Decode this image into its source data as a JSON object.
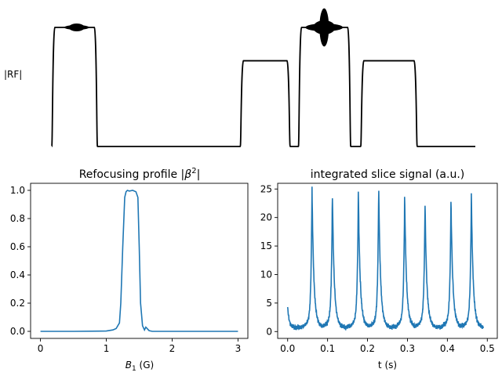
{
  "chart_data": [
    {
      "type": "line",
      "title": "",
      "ylabel": "|RF|",
      "xlabel": "",
      "axes_visible": false,
      "color": "#000000",
      "x": [
        0.0,
        0.08,
        0.12,
        0.5,
        0.8,
        0.84,
        0.95,
        1.0,
        1.42,
        1.46,
        1.9,
        2.27,
        2.31,
        3.45,
        3.5,
        3.8,
        3.92,
        3.96,
        4.08,
        4.12,
        4.5,
        4.7,
        4.75,
        4.9,
        5.24,
        5.28,
        5.9
      ],
      "values": [
        0.0,
        1.0,
        1.0,
        1.0,
        1.0,
        1.0,
        0.0,
        0.0,
        0.0,
        0.0,
        0.0,
        0.0,
        0.0,
        0.0,
        0.0,
        0.0,
        0.0,
        0.0,
        0.0,
        0.0,
        0.0,
        0.0,
        0.0,
        0.0,
        0.0,
        0.0,
        0.0
      ],
      "segments": [
        {
          "x": [
            0.0,
            0.55
          ],
          "level": 1.0
        },
        {
          "x": [
            0.55,
            2.27
          ],
          "level": 0.0
        },
        {
          "x": [
            2.27,
            2.87
          ],
          "level": 0.72
        },
        {
          "x": [
            2.87,
            2.97
          ],
          "level": 0.0
        },
        {
          "x": [
            2.97,
            3.6
          ],
          "level": 1.0
        },
        {
          "x": [
            3.6,
            3.72
          ],
          "level": 0.0
        },
        {
          "x": [
            3.72,
            4.4
          ],
          "level": 0.72
        },
        {
          "x": [
            4.4,
            5.1
          ],
          "level": 0.0
        }
      ],
      "bursts": [
        {
          "center": 0.3,
          "amplitude": 0.03
        },
        {
          "center": 3.28,
          "amplitude": 0.16
        }
      ]
    },
    {
      "type": "line",
      "title": "Refocusing profile |β²|",
      "title_prefix": "Refocusing profile |",
      "title_symbol": "β",
      "title_sup": "2",
      "title_suffix": "|",
      "xlabel_main": "B",
      "xlabel_sub": "1",
      "xlabel_rest": " (G)",
      "ylabel": "",
      "xlim": [
        -0.15,
        3.15
      ],
      "ylim": [
        -0.05,
        1.05
      ],
      "xticks": [
        0,
        1,
        2,
        3
      ],
      "xtick_labels": [
        "0",
        "1",
        "2",
        "3"
      ],
      "yticks": [
        0.0,
        0.2,
        0.4,
        0.6,
        0.8,
        1.0
      ],
      "ytick_labels": [
        "0.0",
        "0.2",
        "0.4",
        "0.6",
        "0.8",
        "1.0"
      ],
      "color": "#1f77b4",
      "x": [
        0.0,
        0.5,
        1.0,
        1.1,
        1.15,
        1.2,
        1.22,
        1.25,
        1.28,
        1.3,
        1.32,
        1.35,
        1.4,
        1.45,
        1.48,
        1.5,
        1.52,
        1.55,
        1.58,
        1.6,
        1.62,
        1.65,
        1.7,
        2.0,
        2.5,
        3.0
      ],
      "values": [
        0.0,
        0.0,
        0.002,
        0.01,
        0.02,
        0.06,
        0.2,
        0.6,
        0.95,
        0.99,
        1.0,
        0.995,
        1.0,
        0.99,
        0.95,
        0.6,
        0.2,
        0.04,
        0.01,
        0.03,
        0.02,
        0.005,
        0.0,
        0.0,
        0.0,
        0.0
      ]
    },
    {
      "type": "line",
      "title": "integrated slice signal (a.u.)",
      "xlabel": "t (s)",
      "ylabel": "",
      "xlim": [
        -0.025,
        0.525
      ],
      "ylim": [
        -1.2,
        26.0
      ],
      "xticks": [
        0.0,
        0.1,
        0.2,
        0.3,
        0.4,
        0.5
      ],
      "xtick_labels": [
        "0.0",
        "0.1",
        "0.2",
        "0.3",
        "0.4",
        "0.5"
      ],
      "yticks": [
        0,
        5,
        10,
        15,
        20,
        25
      ],
      "ytick_labels": [
        "0",
        "5",
        "10",
        "15",
        "20",
        "25"
      ],
      "color": "#1f77b4",
      "start": {
        "x": 0.0,
        "y": 4.3
      },
      "end_x": 0.49,
      "baseline": 0.7,
      "peaks": [
        {
          "x": 0.061,
          "y": 24.3
        },
        {
          "x": 0.112,
          "y": 23.3
        },
        {
          "x": 0.177,
          "y": 23.7
        },
        {
          "x": 0.228,
          "y": 24.5
        },
        {
          "x": 0.293,
          "y": 22.9
        },
        {
          "x": 0.344,
          "y": 21.4
        },
        {
          "x": 0.409,
          "y": 22.2
        },
        {
          "x": 0.46,
          "y": 23.1
        }
      ]
    }
  ]
}
